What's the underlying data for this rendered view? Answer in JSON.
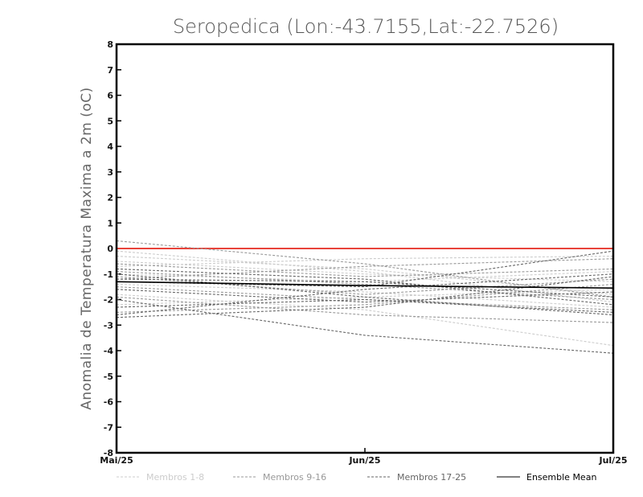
{
  "chart_data": {
    "type": "line",
    "title": "Seropedica (Lon:-43.7155,Lat:-22.7526)",
    "xlabel": "",
    "ylabel": "Anomalia de Temperatura Maxima a 2m (oC)",
    "categories": [
      "Mai/25",
      "Jun/25",
      "Jul/25"
    ],
    "ylim": [
      -8,
      8
    ],
    "yticks": [
      -8,
      -7,
      -6,
      -5,
      -4,
      -3,
      -2,
      -1,
      0,
      1,
      2,
      3,
      4,
      5,
      6,
      7,
      8
    ],
    "grid": false,
    "reference_line": {
      "value": 0,
      "color": "#e8433a"
    },
    "legend_position": "bottom",
    "groups": [
      {
        "name": "Membros 1-8",
        "color": "#cccccc",
        "style": "dashed"
      },
      {
        "name": "Membros 9-16",
        "color": "#999999",
        "style": "dashed"
      },
      {
        "name": "Membros 17-25",
        "color": "#666666",
        "style": "dashed"
      },
      {
        "name": "Ensemble Mean",
        "color": "#000000",
        "style": "solid"
      }
    ],
    "series": [
      {
        "name": "Membro 1",
        "group": 0,
        "values": [
          -0.1,
          -0.9,
          -2.1
        ]
      },
      {
        "name": "Membro 2",
        "group": 0,
        "values": [
          -0.5,
          -1.0,
          -1.3
        ]
      },
      {
        "name": "Membro 3",
        "group": 0,
        "values": [
          -1.8,
          -2.4,
          -3.8
        ]
      },
      {
        "name": "Membro 4",
        "group": 0,
        "values": [
          -1.0,
          -1.3,
          -0.9
        ]
      },
      {
        "name": "Membro 5",
        "group": 0,
        "values": [
          -0.7,
          -0.4,
          -0.3
        ]
      },
      {
        "name": "Membro 6",
        "group": 0,
        "values": [
          -1.4,
          -1.7,
          -2.3
        ]
      },
      {
        "name": "Membro 7",
        "group": 0,
        "values": [
          -2.2,
          -1.9,
          -1.6
        ]
      },
      {
        "name": "Membro 8",
        "group": 0,
        "values": [
          -0.3,
          -0.8,
          -1.8
        ]
      },
      {
        "name": "Membro 9",
        "group": 1,
        "values": [
          0.3,
          -0.6,
          -1.9
        ]
      },
      {
        "name": "Membro 10",
        "group": 1,
        "values": [
          -1.2,
          -0.7,
          -0.4
        ]
      },
      {
        "name": "Membro 11",
        "group": 1,
        "values": [
          -1.5,
          -2.0,
          -2.4
        ]
      },
      {
        "name": "Membro 12",
        "group": 1,
        "values": [
          -2.5,
          -2.2,
          -1.4
        ]
      },
      {
        "name": "Membro 13",
        "group": 1,
        "values": [
          -0.9,
          -1.4,
          -2.0
        ]
      },
      {
        "name": "Membro 14",
        "group": 1,
        "values": [
          -0.6,
          -1.1,
          -0.8
        ]
      },
      {
        "name": "Membro 15",
        "group": 1,
        "values": [
          -1.9,
          -2.6,
          -2.9
        ]
      },
      {
        "name": "Membro 16",
        "group": 1,
        "values": [
          -1.1,
          -1.8,
          -1.2
        ]
      },
      {
        "name": "Membro 17",
        "group": 2,
        "values": [
          -2.0,
          -3.4,
          -4.1
        ]
      },
      {
        "name": "Membro 18",
        "group": 2,
        "values": [
          -2.7,
          -2.3,
          -1.1
        ]
      },
      {
        "name": "Membro 19",
        "group": 2,
        "values": [
          -1.3,
          -1.5,
          -0.1
        ]
      },
      {
        "name": "Membro 20",
        "group": 2,
        "values": [
          -0.8,
          -1.2,
          -2.2
        ]
      },
      {
        "name": "Membro 21",
        "group": 2,
        "values": [
          -1.6,
          -2.1,
          -1.7
        ]
      },
      {
        "name": "Membro 22",
        "group": 2,
        "values": [
          -2.6,
          -1.6,
          -1.0
        ]
      },
      {
        "name": "Membro 23",
        "group": 2,
        "values": [
          -1.0,
          -1.9,
          -2.6
        ]
      },
      {
        "name": "Membro 24",
        "group": 2,
        "values": [
          -2.3,
          -2.0,
          -2.5
        ]
      },
      {
        "name": "Membro 25",
        "group": 2,
        "values": [
          -1.2,
          -1.3,
          -1.9
        ]
      },
      {
        "name": "Ensemble Mean",
        "group": 3,
        "values": [
          -1.3,
          -1.45,
          -1.55
        ]
      }
    ]
  }
}
